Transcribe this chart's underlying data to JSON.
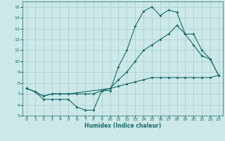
{
  "background_color": "#cce8e8",
  "grid_color": "#aacccc",
  "line_color": "#1a6b6b",
  "xlabel": "Humidex (Indice chaleur)",
  "xlim": [
    -0.5,
    23.5
  ],
  "ylim": [
    5,
    15.5
  ],
  "yticks": [
    5,
    6,
    7,
    8,
    9,
    10,
    11,
    12,
    13,
    14,
    15
  ],
  "xticks": [
    0,
    1,
    2,
    3,
    4,
    5,
    6,
    7,
    8,
    9,
    10,
    11,
    12,
    13,
    14,
    15,
    16,
    17,
    18,
    19,
    20,
    21,
    22,
    23
  ],
  "line1_x": [
    0,
    1,
    2,
    3,
    4,
    5,
    6,
    7,
    8,
    9,
    10,
    11,
    12,
    13,
    14,
    15,
    16,
    17,
    18,
    19,
    20,
    21,
    22,
    23
  ],
  "line1_y": [
    7.5,
    7.2,
    6.5,
    6.5,
    6.5,
    6.5,
    5.8,
    5.5,
    5.5,
    7.3,
    7.3,
    9.5,
    11.0,
    13.2,
    14.6,
    15.0,
    14.2,
    14.7,
    14.5,
    12.5,
    11.5,
    10.5,
    10.2,
    8.7
  ],
  "line2_x": [
    0,
    1,
    2,
    3,
    4,
    5,
    6,
    7,
    8,
    9,
    10,
    11,
    12,
    13,
    14,
    15,
    16,
    17,
    18,
    19,
    20,
    21,
    22,
    23
  ],
  "line2_y": [
    7.5,
    7.2,
    6.8,
    7.0,
    7.0,
    7.0,
    7.0,
    7.0,
    7.0,
    7.3,
    7.5,
    7.7,
    7.9,
    8.1,
    8.3,
    8.5,
    8.5,
    8.5,
    8.5,
    8.5,
    8.5,
    8.5,
    8.5,
    8.7
  ],
  "line3_x": [
    0,
    1,
    2,
    3,
    4,
    5,
    10,
    11,
    12,
    13,
    14,
    15,
    16,
    17,
    18,
    19,
    20,
    21,
    22,
    23
  ],
  "line3_y": [
    7.5,
    7.2,
    6.8,
    7.0,
    7.0,
    7.0,
    7.5,
    8.3,
    9.0,
    10.0,
    11.0,
    11.5,
    12.0,
    12.5,
    13.3,
    12.5,
    12.5,
    11.0,
    10.2,
    8.7
  ]
}
